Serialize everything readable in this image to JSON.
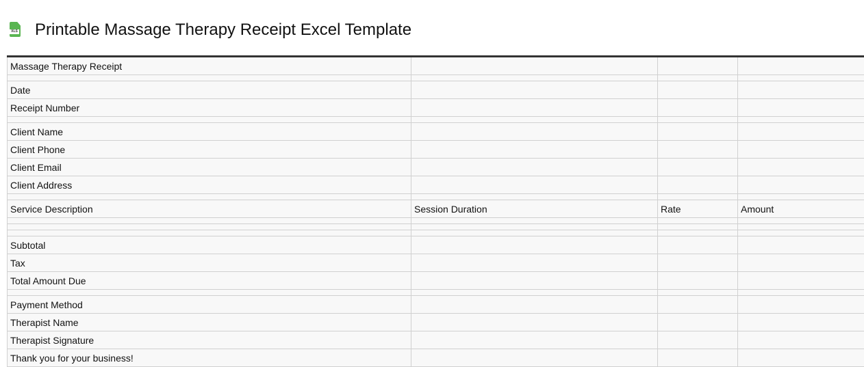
{
  "header": {
    "title": "Printable Massage Therapy Receipt Excel Template",
    "icon": "xls-file-icon",
    "icon_label": "XLS"
  },
  "columns": [
    "Service Description",
    "Session Duration",
    "Rate",
    "Amount"
  ],
  "rows": [
    {
      "label": "Massage Therapy Receipt"
    },
    {
      "spacer": true
    },
    {
      "label": "Date"
    },
    {
      "label": "Receipt Number"
    },
    {
      "spacer": true
    },
    {
      "label": "Client Name"
    },
    {
      "label": "Client Phone"
    },
    {
      "label": "Client Email"
    },
    {
      "label": "Client Address"
    },
    {
      "spacer": true
    },
    {
      "header": true
    },
    {
      "spacer": true
    },
    {
      "spacer": true
    },
    {
      "spacer": true
    },
    {
      "label": "Subtotal"
    },
    {
      "label": "Tax"
    },
    {
      "label": "Total Amount Due"
    },
    {
      "spacer": true
    },
    {
      "label": "Payment Method"
    },
    {
      "label": "Therapist Name"
    },
    {
      "label": "Therapist Signature"
    },
    {
      "label": "Thank you for your business!"
    }
  ]
}
